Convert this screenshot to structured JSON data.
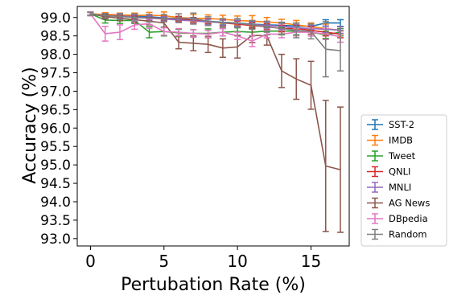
{
  "chart_data": {
    "type": "line",
    "title": "",
    "xlabel": "Pertubation Rate (%)",
    "ylabel": "Accuracy (%)",
    "xlim": [
      -0.9,
      17.6
    ],
    "ylim": [
      92.8,
      99.3
    ],
    "xticks": [
      "0",
      "5",
      "10",
      "15"
    ],
    "yticks": [
      "93.0",
      "93.5",
      "94.0",
      "94.5",
      "95.0",
      "95.5",
      "96.0",
      "96.5",
      "97.0",
      "97.5",
      "98.0",
      "98.5",
      "99.0"
    ],
    "grid": false,
    "legend_position": "outside-right",
    "x": [
      0,
      1,
      2,
      3,
      4,
      5,
      6,
      7,
      8,
      9,
      10,
      11,
      12,
      13,
      14,
      15,
      16,
      17
    ],
    "series": [
      {
        "name": "SST-2",
        "color": "#1f77b4",
        "values": [
          99.1,
          99.07,
          99.07,
          99.04,
          99.02,
          98.99,
          98.96,
          98.93,
          98.9,
          98.87,
          98.85,
          98.82,
          98.8,
          98.79,
          98.77,
          98.76,
          98.85,
          98.85
        ],
        "errors": [
          0.04,
          0.05,
          0.05,
          0.05,
          0.06,
          0.06,
          0.06,
          0.07,
          0.07,
          0.07,
          0.08,
          0.08,
          0.08,
          0.08,
          0.08,
          0.09,
          0.09,
          0.09
        ]
      },
      {
        "name": "IMDB",
        "color": "#ff7f0e",
        "values": [
          99.1,
          99.08,
          99.07,
          99.06,
          99.06,
          99.05,
          99.0,
          98.98,
          98.97,
          98.95,
          98.92,
          98.9,
          98.88,
          98.85,
          98.8,
          98.75,
          98.7,
          98.65
        ],
        "errors": [
          0.04,
          0.05,
          0.05,
          0.06,
          0.08,
          0.1,
          0.1,
          0.1,
          0.1,
          0.11,
          0.12,
          0.15,
          0.12,
          0.1,
          0.12,
          0.1,
          0.12,
          0.1
        ]
      },
      {
        "name": "Tweet",
        "color": "#2ca02c",
        "values": [
          99.1,
          98.93,
          98.92,
          98.92,
          98.6,
          98.62,
          98.58,
          98.57,
          98.57,
          98.6,
          98.62,
          98.6,
          98.63,
          98.63,
          98.63,
          98.6,
          98.53,
          98.6
        ],
        "errors": [
          0.05,
          0.08,
          0.08,
          0.08,
          0.15,
          0.12,
          0.1,
          0.1,
          0.12,
          0.1,
          0.1,
          0.1,
          0.1,
          0.1,
          0.1,
          0.1,
          0.1,
          0.1
        ]
      },
      {
        "name": "QNLI",
        "color": "#d62728",
        "values": [
          99.1,
          99.05,
          99.05,
          99.0,
          99.0,
          98.97,
          98.97,
          98.92,
          98.9,
          98.85,
          98.82,
          98.78,
          98.75,
          98.7,
          98.7,
          98.65,
          98.6,
          98.55
        ],
        "errors": [
          0.04,
          0.05,
          0.05,
          0.05,
          0.06,
          0.06,
          0.06,
          0.07,
          0.07,
          0.08,
          0.08,
          0.08,
          0.08,
          0.09,
          0.09,
          0.1,
          0.1,
          0.1
        ]
      },
      {
        "name": "MNLI",
        "color": "#9467bd",
        "values": [
          99.1,
          99.04,
          99.04,
          99.02,
          98.98,
          98.96,
          98.93,
          98.91,
          98.88,
          98.86,
          98.84,
          98.81,
          98.79,
          98.76,
          98.72,
          98.7,
          98.68,
          98.66
        ],
        "errors": [
          0.04,
          0.05,
          0.05,
          0.05,
          0.06,
          0.06,
          0.06,
          0.07,
          0.07,
          0.07,
          0.08,
          0.08,
          0.08,
          0.08,
          0.09,
          0.09,
          0.09,
          0.09
        ]
      },
      {
        "name": "AG News",
        "color": "#8c564b",
        "values": [
          99.1,
          99.02,
          98.98,
          98.94,
          98.9,
          98.85,
          98.33,
          98.3,
          98.27,
          98.17,
          98.2,
          98.52,
          98.5,
          97.55,
          97.33,
          97.16,
          94.97,
          94.87
        ],
        "errors": [
          0.05,
          0.06,
          0.07,
          0.08,
          0.1,
          0.12,
          0.18,
          0.2,
          0.22,
          0.25,
          0.3,
          0.2,
          0.25,
          0.45,
          0.55,
          0.65,
          1.78,
          1.7
        ]
      },
      {
        "name": "DBpedia",
        "color": "#e377c2",
        "values": [
          99.1,
          98.56,
          98.6,
          98.8,
          98.83,
          98.62,
          98.6,
          98.57,
          98.55,
          98.6,
          98.5,
          98.36,
          98.55,
          98.55,
          98.6,
          98.6,
          98.55,
          98.48
        ],
        "errors": [
          0.05,
          0.2,
          0.2,
          0.12,
          0.12,
          0.1,
          0.1,
          0.1,
          0.1,
          0.1,
          0.1,
          0.15,
          0.1,
          0.1,
          0.1,
          0.1,
          0.15,
          0.15
        ]
      },
      {
        "name": "Random",
        "color": "#7f7f7f",
        "values": [
          99.1,
          99.05,
          99.03,
          99.0,
          98.98,
          98.98,
          98.98,
          98.97,
          98.9,
          98.85,
          98.85,
          98.8,
          98.75,
          98.7,
          98.65,
          98.62,
          98.14,
          98.1
        ],
        "errors": [
          0.04,
          0.06,
          0.08,
          0.1,
          0.1,
          0.1,
          0.12,
          0.15,
          0.12,
          0.12,
          0.12,
          0.12,
          0.15,
          0.15,
          0.2,
          0.2,
          0.75,
          0.55
        ]
      }
    ]
  }
}
